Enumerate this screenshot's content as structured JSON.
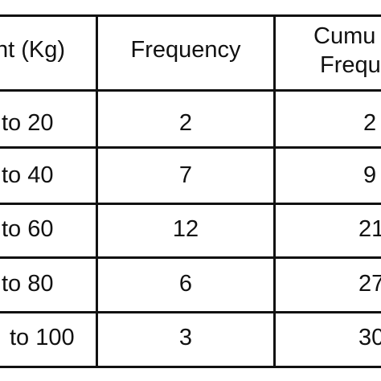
{
  "table": {
    "headers": {
      "weight": "ht (Kg)",
      "frequency": "Frequency",
      "cumulative_line1": "Cumu",
      "cumulative_line2": "Frequ"
    },
    "rows": [
      {
        "weight": "to 20",
        "frequency": "2",
        "cumulative": "2"
      },
      {
        "weight": "to 40",
        "frequency": "7",
        "cumulative": "9"
      },
      {
        "weight": "to 60",
        "frequency": "12",
        "cumulative": "21"
      },
      {
        "weight": "to 80",
        "frequency": "6",
        "cumulative": "27"
      },
      {
        "weight": "to 100",
        "frequency": "3",
        "cumulative": "30"
      }
    ]
  }
}
